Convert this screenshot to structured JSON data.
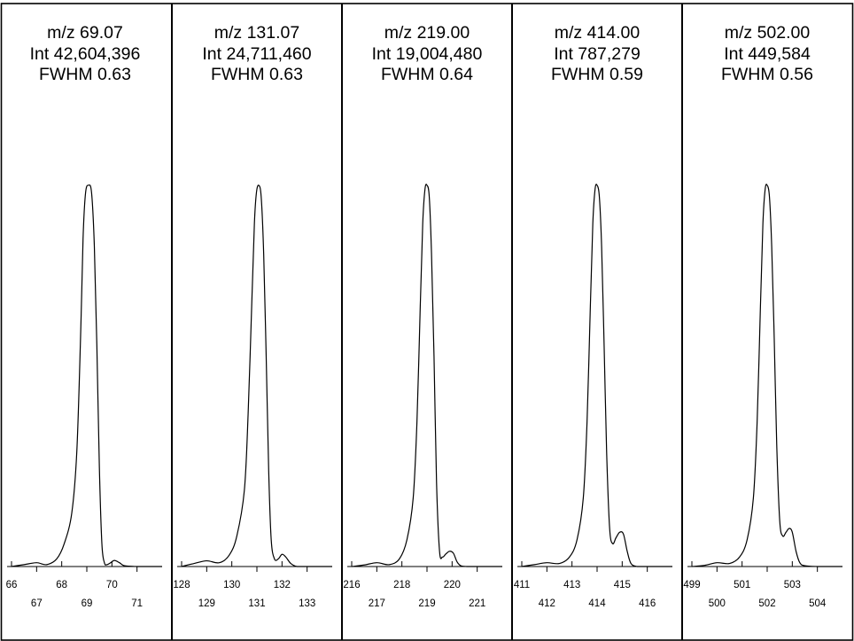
{
  "chart_data": [
    {
      "type": "line",
      "title_lines": {
        "mz": "m/z 69.07",
        "int": "Int 42,604,396",
        "fwhm": "FWHM 0.63"
      },
      "peak_mz": 69.07,
      "intensity": 42604396,
      "fwhm": 0.63,
      "xlim": [
        66,
        72
      ],
      "ylim": [
        0,
        1
      ],
      "major_ticks": [
        66,
        68,
        70
      ],
      "minor_ticks": [
        67,
        69,
        71
      ],
      "major_tick_labels": [
        "66",
        "68",
        "70"
      ],
      "minor_tick_labels": [
        "67",
        "69",
        "71"
      ],
      "profile": {
        "x": [
          66.0,
          66.5,
          67.0,
          67.4,
          67.8,
          68.1,
          68.4,
          68.6,
          68.75,
          68.85,
          68.95,
          69.07,
          69.19,
          69.3,
          69.4,
          69.5,
          69.6,
          69.7,
          69.8,
          69.95,
          70.1,
          70.3,
          70.5,
          71.0,
          71.5,
          72.0
        ],
        "y": [
          0.0,
          0.005,
          0.01,
          0.005,
          0.02,
          0.06,
          0.14,
          0.3,
          0.6,
          0.86,
          0.98,
          1.0,
          0.98,
          0.84,
          0.58,
          0.26,
          0.06,
          0.01,
          0.005,
          0.01,
          0.016,
          0.01,
          0.002,
          0.0,
          0.0,
          0.0
        ]
      }
    },
    {
      "type": "line",
      "title_lines": {
        "mz": "m/z 131.07",
        "int": "Int 24,711,460",
        "fwhm": "FWHM 0.63"
      },
      "peak_mz": 131.07,
      "intensity": 24711460,
      "fwhm": 0.63,
      "xlim": [
        128,
        134
      ],
      "ylim": [
        0,
        1
      ],
      "major_ticks": [
        128,
        130,
        132
      ],
      "minor_ticks": [
        129,
        131,
        133
      ],
      "major_tick_labels": [
        "128",
        "130",
        "132"
      ],
      "minor_tick_labels": [
        "129",
        "131",
        "133"
      ],
      "profile": {
        "x": [
          128.0,
          128.5,
          129.0,
          129.5,
          129.9,
          130.2,
          130.5,
          130.65,
          130.8,
          130.9,
          130.98,
          131.07,
          131.17,
          131.27,
          131.37,
          131.47,
          131.57,
          131.7,
          131.85,
          132.0,
          132.15,
          132.35,
          132.6,
          133.0,
          133.5,
          134.0
        ],
        "y": [
          0.0,
          0.008,
          0.015,
          0.01,
          0.03,
          0.08,
          0.2,
          0.4,
          0.7,
          0.9,
          0.98,
          1.0,
          0.97,
          0.82,
          0.55,
          0.25,
          0.07,
          0.02,
          0.02,
          0.032,
          0.025,
          0.008,
          0.0,
          0.0,
          0.0,
          0.0
        ]
      }
    },
    {
      "type": "line",
      "title_lines": {
        "mz": "m/z 219.00",
        "int": "Int 19,004,480",
        "fwhm": "FWHM 0.64"
      },
      "peak_mz": 219.0,
      "intensity": 19004480,
      "fwhm": 0.64,
      "xlim": [
        216,
        222
      ],
      "ylim": [
        0,
        1
      ],
      "major_ticks": [
        216,
        218,
        220
      ],
      "minor_ticks": [
        217,
        219,
        221
      ],
      "major_tick_labels": [
        "216",
        "218",
        "220"
      ],
      "minor_tick_labels": [
        "217",
        "219",
        "221"
      ],
      "profile": {
        "x": [
          216.0,
          216.5,
          217.0,
          217.5,
          217.9,
          218.2,
          218.45,
          218.6,
          218.73,
          218.83,
          218.92,
          219.0,
          219.09,
          219.18,
          219.28,
          219.38,
          219.5,
          219.62,
          219.75,
          219.9,
          220.05,
          220.2,
          220.35,
          220.6,
          221.0,
          222.0
        ],
        "y": [
          0.0,
          0.004,
          0.01,
          0.005,
          0.02,
          0.07,
          0.18,
          0.38,
          0.68,
          0.9,
          0.99,
          1.0,
          0.97,
          0.82,
          0.55,
          0.22,
          0.04,
          0.025,
          0.033,
          0.04,
          0.035,
          0.012,
          0.002,
          0.0,
          0.0,
          0.0
        ]
      }
    },
    {
      "type": "line",
      "title_lines": {
        "mz": "m/z 414.00",
        "int": "Int 787,279",
        "fwhm": "FWHM 0.59"
      },
      "peak_mz": 414.0,
      "intensity": 787279,
      "fwhm": 0.59,
      "xlim": [
        411,
        417
      ],
      "ylim": [
        0,
        1
      ],
      "major_ticks": [
        411,
        413,
        415
      ],
      "minor_ticks": [
        412,
        414,
        416
      ],
      "major_tick_labels": [
        "411",
        "413",
        "415"
      ],
      "minor_tick_labels": [
        "412",
        "414",
        "416"
      ],
      "profile": {
        "x": [
          411.0,
          411.5,
          412.0,
          412.5,
          412.9,
          413.2,
          413.45,
          413.6,
          413.73,
          413.83,
          413.92,
          414.0,
          414.09,
          414.18,
          414.28,
          414.38,
          414.5,
          414.62,
          414.75,
          414.9,
          415.05,
          415.2,
          415.35,
          415.6,
          416.0,
          417.0
        ],
        "y": [
          0.0,
          0.005,
          0.01,
          0.008,
          0.025,
          0.07,
          0.18,
          0.38,
          0.68,
          0.9,
          0.99,
          1.0,
          0.97,
          0.84,
          0.58,
          0.3,
          0.1,
          0.06,
          0.075,
          0.09,
          0.085,
          0.04,
          0.008,
          0.0,
          0.0,
          0.0
        ]
      }
    },
    {
      "type": "line",
      "title_lines": {
        "mz": "m/z 502.00",
        "int": "Int 449,584",
        "fwhm": "FWHM 0.56"
      },
      "peak_mz": 502.0,
      "intensity": 449584,
      "fwhm": 0.56,
      "xlim": [
        499,
        505
      ],
      "ylim": [
        0,
        1
      ],
      "major_ticks": [
        499,
        501,
        503
      ],
      "minor_ticks": [
        500,
        502,
        504
      ],
      "major_tick_labels": [
        "499",
        "501",
        "503"
      ],
      "minor_tick_labels": [
        "500",
        "502",
        "504"
      ],
      "profile": {
        "x": [
          499.0,
          499.5,
          500.0,
          500.5,
          500.9,
          501.2,
          501.45,
          501.6,
          501.73,
          501.83,
          501.92,
          502.0,
          502.09,
          502.18,
          502.28,
          502.38,
          502.5,
          502.62,
          502.75,
          502.88,
          503.0,
          503.15,
          503.3,
          503.5,
          504.0,
          505.0
        ],
        "y": [
          0.0,
          0.003,
          0.01,
          0.008,
          0.025,
          0.07,
          0.18,
          0.38,
          0.68,
          0.9,
          0.99,
          1.0,
          0.97,
          0.84,
          0.6,
          0.32,
          0.12,
          0.08,
          0.09,
          0.1,
          0.09,
          0.04,
          0.01,
          0.002,
          0.0,
          0.0
        ]
      }
    }
  ]
}
